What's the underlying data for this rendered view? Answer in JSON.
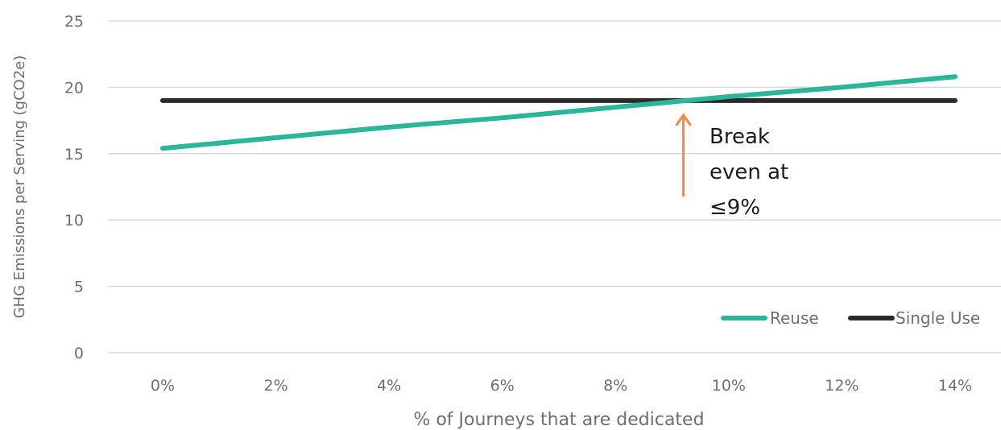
{
  "chart_data": {
    "type": "line",
    "x": [
      0,
      2,
      4,
      6,
      8,
      10,
      12,
      14
    ],
    "x_tick_labels": [
      "0%",
      "2%",
      "4%",
      "6%",
      "8%",
      "10%",
      "12%",
      "14%"
    ],
    "xlabel": "% of Journeys that are dedicated",
    "ylabel": "GHG Emissions per Serving (gCO2e)",
    "ylim": [
      0,
      25
    ],
    "y_ticks": [
      0,
      5,
      10,
      15,
      20,
      25
    ],
    "grid": "horizontal",
    "legend_position": "bottom-right",
    "series": [
      {
        "name": "Reuse",
        "color": "#2bb59a",
        "values": [
          15.4,
          16.2,
          17.0,
          17.7,
          18.5,
          19.3,
          20.0,
          20.8
        ]
      },
      {
        "name": "Single Use",
        "color": "#2b2b2b",
        "values": [
          19.0,
          19.0,
          19.0,
          19.0,
          19.0,
          19.0,
          19.0,
          19.0
        ]
      }
    ],
    "annotation": {
      "lines": [
        "Break",
        "even at",
        "≤9%"
      ],
      "x": 9.2,
      "y": 19.0,
      "arrow_color": "#f08a3e"
    }
  }
}
